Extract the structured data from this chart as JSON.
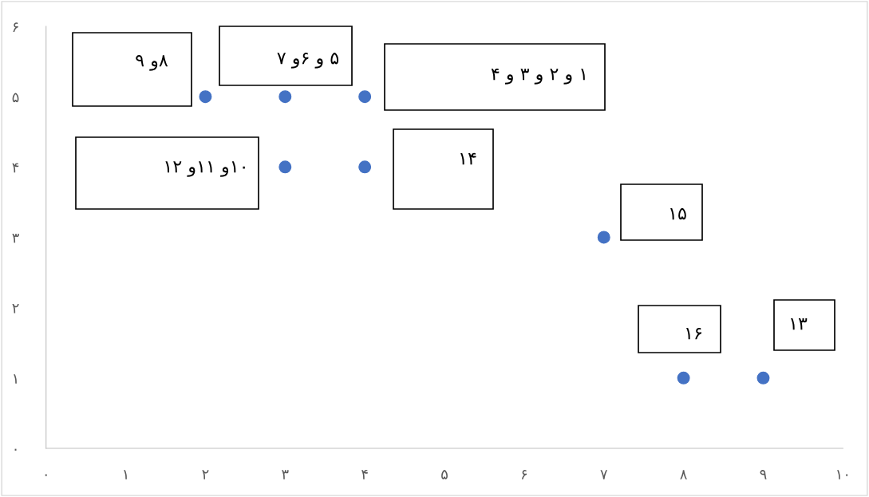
{
  "chart_data": {
    "type": "scatter",
    "x": [
      2,
      3,
      4,
      3,
      4,
      7,
      8,
      9
    ],
    "series": [
      {
        "color": "#4472c4",
        "values": [
          5,
          5,
          5,
          4,
          4,
          3,
          1,
          1
        ]
      }
    ],
    "marker": "circle",
    "xlim": [
      0,
      10
    ],
    "ylim": [
      0,
      6
    ],
    "xticks": [
      {
        "value": 0,
        "label": "۰"
      },
      {
        "value": 1,
        "label": "۱"
      },
      {
        "value": 2,
        "label": "۲"
      },
      {
        "value": 3,
        "label": "۳"
      },
      {
        "value": 4,
        "label": "۴"
      },
      {
        "value": 5,
        "label": "۵"
      },
      {
        "value": 6,
        "label": "۶"
      },
      {
        "value": 7,
        "label": "۷"
      },
      {
        "value": 8,
        "label": "۸"
      },
      {
        "value": 9,
        "label": "۹"
      },
      {
        "value": 10,
        "label": "۱۰"
      }
    ],
    "yticks": [
      {
        "value": 0,
        "label": "۰"
      },
      {
        "value": 1,
        "label": "۱"
      },
      {
        "value": 2,
        "label": "۲"
      },
      {
        "value": 3,
        "label": "۳"
      },
      {
        "value": 4,
        "label": "۴"
      },
      {
        "value": 5,
        "label": "۵"
      },
      {
        "value": 6,
        "label": "۶"
      }
    ],
    "grid": false,
    "legend": false,
    "annotations": [
      "۹ و۸",
      "۷ و۶ و ۵",
      "۴ و ۳ و ۲ و ۱",
      "۱۲ و۱۱ و۱۰",
      "۱۴",
      "۱۵",
      "۱۶",
      "۱۳"
    ]
  }
}
